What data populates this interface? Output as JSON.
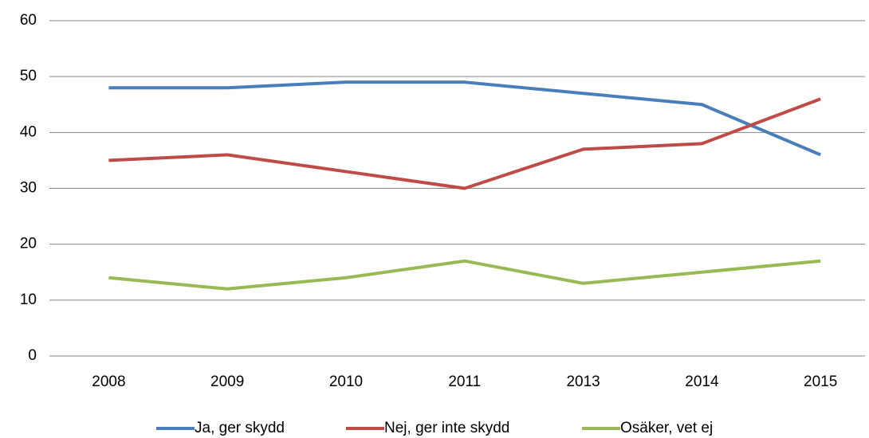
{
  "chart_data": {
    "type": "line",
    "categories": [
      "2008",
      "2009",
      "2010",
      "2011",
      "2013",
      "2014",
      "2015"
    ],
    "series": [
      {
        "name": "Ja, ger skydd",
        "color": "#4a7ebb",
        "values": [
          48,
          48,
          49,
          49,
          47,
          45,
          36
        ]
      },
      {
        "name": "Nej, ger inte skydd",
        "color": "#be4b48",
        "values": [
          35,
          36,
          33,
          30,
          37,
          38,
          46
        ]
      },
      {
        "name": "Osäker, vet ej",
        "color": "#98b954",
        "values": [
          14,
          12,
          14,
          17,
          13,
          15,
          17
        ]
      }
    ],
    "ylim": [
      0,
      60
    ],
    "yticks": [
      0,
      10,
      20,
      30,
      40,
      50,
      60
    ],
    "grid": true,
    "legend": "bottom"
  }
}
